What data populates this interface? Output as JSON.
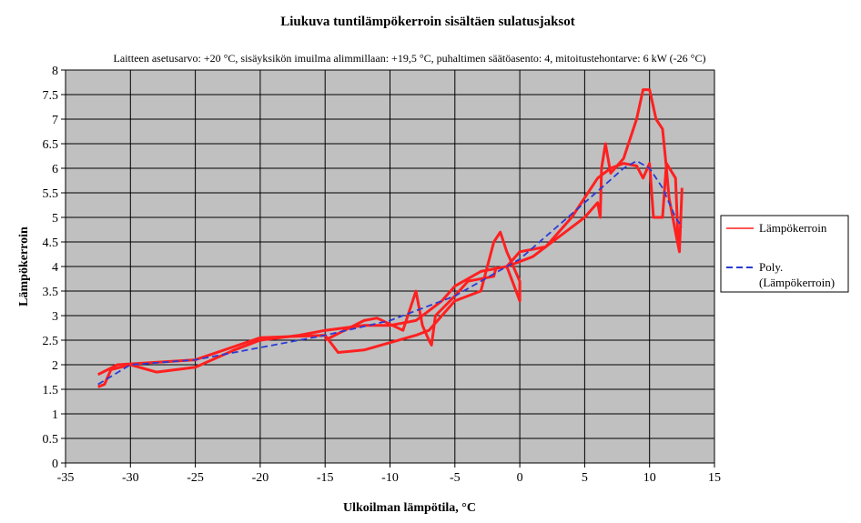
{
  "chart_data": {
    "type": "line",
    "title": "Liukuva tuntilämpökerroin sisältäen sulatusjaksot",
    "subtitle": "Laitteen asetusarvo: +20 °C, sisäyksikön imuilma alimmillaan: +19,5 °C, puhaltimen säätöasento: 4, mitoitustehontarve: 6 kW (-26 °C)",
    "xlabel": "Ulkoilman lämpötila, °C",
    "ylabel": "Lämpökerroin",
    "xlim": [
      -35,
      15
    ],
    "ylim": [
      0,
      8
    ],
    "xticks": [
      -35,
      -30,
      -25,
      -20,
      -15,
      -10,
      -5,
      0,
      5,
      10,
      15
    ],
    "yticks": [
      0,
      0.5,
      1,
      1.5,
      2,
      2.5,
      3,
      3.5,
      4,
      4.5,
      5,
      5.5,
      6,
      6.5,
      7,
      7.5,
      8
    ],
    "ytick_labels": [
      "0",
      "0.5",
      "1",
      "1.5",
      "2",
      "2.5",
      "3",
      "3.5",
      "4",
      "4.5",
      "5",
      "5.5",
      "6",
      "6.5",
      "7",
      "7.5",
      "8"
    ],
    "grid": true,
    "legend_position": "right",
    "colors": {
      "series": "#ff2020",
      "trend": "#2a3bd6",
      "plot_bg": "#c0c0c0"
    },
    "series": [
      {
        "name": "Lämpökerroin",
        "segments": [
          [
            [
              -32.5,
              1.55
            ],
            [
              -32,
              1.6
            ],
            [
              -31.5,
              1.9
            ],
            [
              -30,
              2.0
            ],
            [
              -28,
              1.85
            ],
            [
              -25,
              1.95
            ],
            [
              -22,
              2.3
            ],
            [
              -20,
              2.5
            ],
            [
              -17,
              2.6
            ],
            [
              -15,
              2.7
            ],
            [
              -12,
              2.8
            ],
            [
              -10,
              2.8
            ],
            [
              -8,
              2.9
            ],
            [
              -6,
              3.3
            ],
            [
              -5,
              3.6
            ],
            [
              -3,
              3.9
            ],
            [
              -1,
              4.0
            ],
            [
              1,
              4.2
            ],
            [
              3,
              4.6
            ],
            [
              5,
              5.0
            ],
            [
              6,
              5.3
            ],
            [
              6.2,
              5.0
            ],
            [
              6.3,
              6.0
            ],
            [
              6.6,
              6.5
            ],
            [
              7,
              5.9
            ],
            [
              8,
              6.2
            ],
            [
              9,
              7.0
            ],
            [
              9.5,
              7.6
            ],
            [
              10,
              7.6
            ],
            [
              10.5,
              7.0
            ],
            [
              11,
              6.8
            ],
            [
              11.3,
              6.0
            ],
            [
              11.5,
              5.4
            ],
            [
              12,
              4.7
            ],
            [
              12.3,
              4.3
            ],
            [
              12.5,
              5.6
            ]
          ],
          [
            [
              -32.5,
              1.8
            ],
            [
              -31,
              2.0
            ],
            [
              -25,
              2.1
            ],
            [
              -20,
              2.55
            ],
            [
              -15,
              2.6
            ],
            [
              -14,
              2.25
            ],
            [
              -12,
              2.3
            ],
            [
              -10,
              2.45
            ],
            [
              -8,
              2.6
            ],
            [
              -7,
              2.7
            ],
            [
              -6,
              3.0
            ],
            [
              -5,
              3.3
            ],
            [
              -3,
              3.5
            ],
            [
              -2,
              4.5
            ],
            [
              -1.5,
              4.7
            ],
            [
              -1,
              4.3
            ],
            [
              0,
              3.7
            ],
            [
              0,
              3.3
            ],
            [
              -1,
              4.0
            ],
            [
              0,
              4.3
            ],
            [
              2,
              4.4
            ],
            [
              4,
              5.0
            ],
            [
              5,
              5.4
            ],
            [
              6,
              5.8
            ],
            [
              7,
              6.0
            ],
            [
              8,
              6.1
            ],
            [
              9,
              6.05
            ],
            [
              9.5,
              5.8
            ],
            [
              10,
              6.1
            ],
            [
              10.3,
              5.0
            ],
            [
              11,
              5.0
            ],
            [
              11.3,
              6.1
            ],
            [
              12,
              5.8
            ],
            [
              12.2,
              4.5
            ]
          ],
          [
            [
              -15,
              2.5
            ],
            [
              -12,
              2.9
            ],
            [
              -11,
              2.95
            ],
            [
              -9,
              2.7
            ],
            [
              -8,
              3.5
            ],
            [
              -7.5,
              2.8
            ],
            [
              -7,
              2.5
            ],
            [
              -6.8,
              2.4
            ],
            [
              -6.5,
              3.0
            ],
            [
              -5,
              3.4
            ],
            [
              -4,
              3.7
            ],
            [
              -2,
              3.8
            ],
            [
              -1.8,
              4.0
            ]
          ]
        ]
      },
      {
        "name": "Poly. (Lämpökerroin)",
        "legend_lines": [
          "Poly.",
          "(Lämpökerroin)"
        ],
        "segments": [
          [
            [
              -32.5,
              1.6
            ],
            [
              -30,
              2.0
            ],
            [
              -25,
              2.1
            ],
            [
              -20,
              2.35
            ],
            [
              -15,
              2.6
            ],
            [
              -10,
              2.9
            ],
            [
              -5,
              3.4
            ],
            [
              0,
              4.15
            ],
            [
              5,
              5.3
            ],
            [
              8,
              6.0
            ],
            [
              9,
              6.15
            ],
            [
              10,
              6.0
            ],
            [
              11,
              5.6
            ],
            [
              12,
              5.0
            ],
            [
              12.5,
              4.8
            ]
          ]
        ]
      }
    ]
  }
}
